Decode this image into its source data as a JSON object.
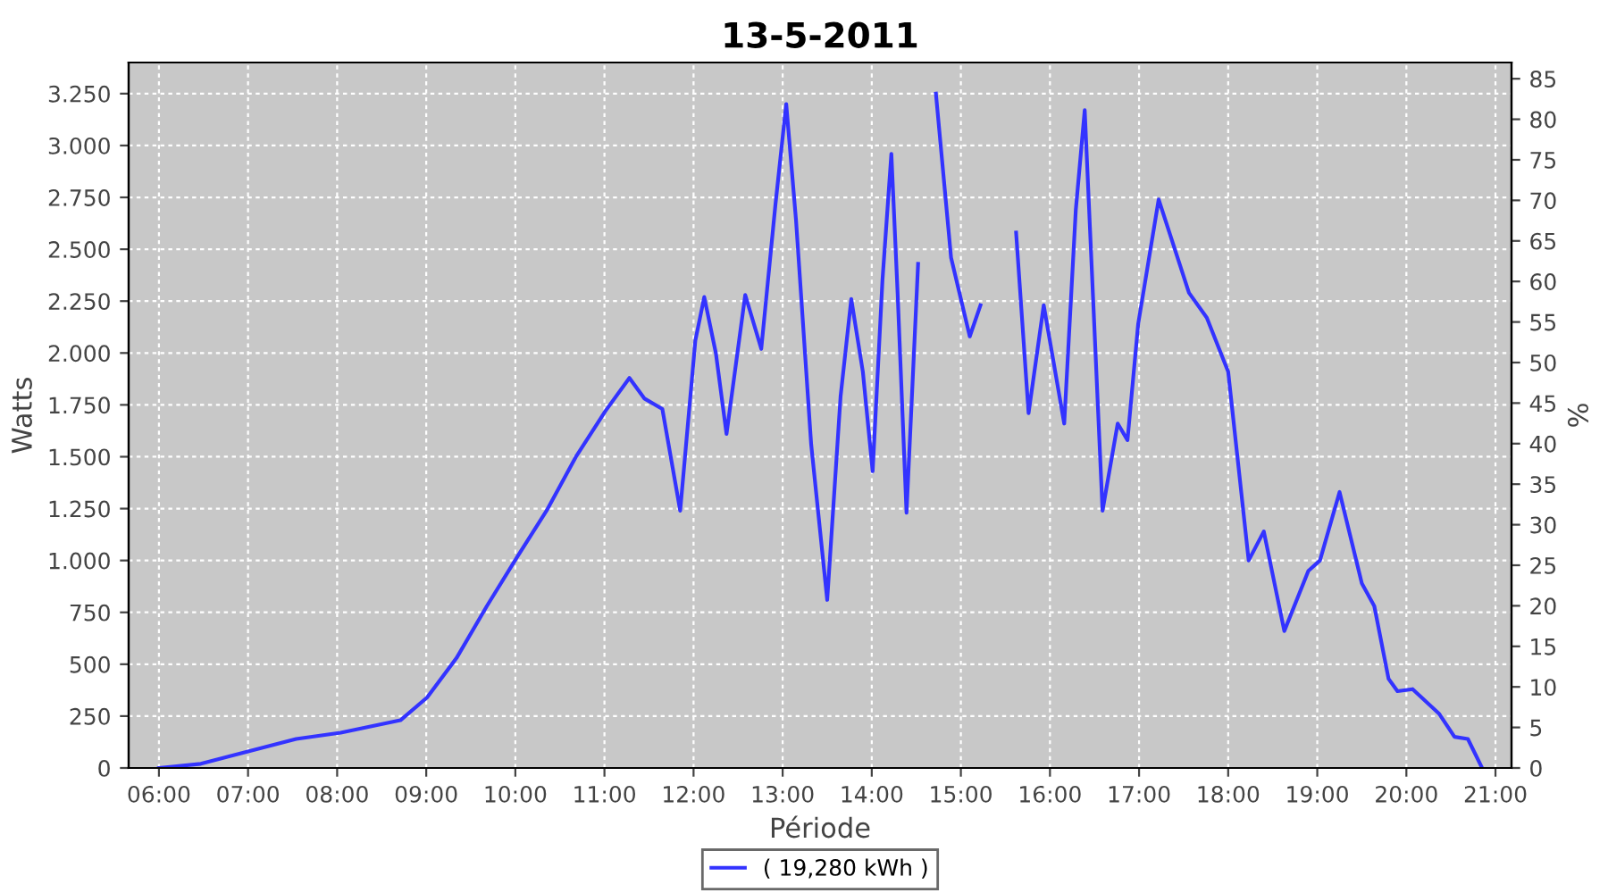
{
  "chart_data": {
    "type": "line",
    "title": "13-5-2011",
    "xlabel": "Période",
    "ylabel": "Watts",
    "y2label": "%",
    "series": [
      {
        "name": "( 19,280 kWh )",
        "color": "#3333ff",
        "x": [
          6.0,
          6.47,
          7.0,
          7.54,
          8.04,
          8.71,
          9.01,
          9.34,
          9.68,
          10.01,
          10.35,
          10.68,
          11.01,
          11.28,
          11.45,
          11.65,
          11.85,
          12.02,
          12.12,
          12.25,
          12.37,
          12.58,
          12.76,
          12.92,
          13.04,
          13.15,
          13.32,
          13.5,
          13.65,
          13.77,
          13.9,
          14.01,
          14.12,
          14.22,
          14.29,
          14.39,
          14.52,
          14.62,
          14.72,
          14.89,
          15.1,
          15.22,
          15.42,
          15.52,
          15.62,
          15.76,
          15.93,
          16.16,
          16.29,
          16.39,
          16.59,
          16.76,
          16.87,
          16.99,
          17.22,
          17.56,
          17.76,
          18.0,
          18.23,
          18.4,
          18.63,
          18.9,
          19.03,
          19.25,
          19.5,
          19.64,
          19.8,
          19.9,
          20.07,
          20.37,
          20.54,
          20.69,
          20.85
        ],
        "values": [
          0,
          20,
          80,
          140,
          170,
          230,
          340,
          530,
          780,
          1010,
          1240,
          1500,
          1720,
          1880,
          1780,
          1730,
          1240,
          2060,
          2270,
          2000,
          1610,
          2280,
          2020,
          2720,
          3200,
          2640,
          1560,
          810,
          1790,
          2260,
          1910,
          1430,
          2350,
          2960,
          2290,
          1230,
          2430,
          null,
          3250,
          2460,
          2080,
          2230,
          null,
          null,
          2580,
          1710,
          2230,
          1660,
          2690,
          3170,
          1240,
          1660,
          1580,
          2140,
          2740,
          2290,
          2170,
          1910,
          1000,
          1140,
          660,
          950,
          1000,
          1330,
          890,
          780,
          430,
          370,
          380,
          260,
          150,
          140,
          0
        ]
      }
    ],
    "xlim": [
      5.66,
      21.18
    ],
    "xticks": [
      {
        "value": 6,
        "label": "06:00"
      },
      {
        "value": 7,
        "label": "07:00"
      },
      {
        "value": 8,
        "label": "08:00"
      },
      {
        "value": 9,
        "label": "09:00"
      },
      {
        "value": 10,
        "label": "10:00"
      },
      {
        "value": 11,
        "label": "11:00"
      },
      {
        "value": 12,
        "label": "12:00"
      },
      {
        "value": 13,
        "label": "13:00"
      },
      {
        "value": 14,
        "label": "14:00"
      },
      {
        "value": 15,
        "label": "15:00"
      },
      {
        "value": 16,
        "label": "16:00"
      },
      {
        "value": 17,
        "label": "17:00"
      },
      {
        "value": 18,
        "label": "18:00"
      },
      {
        "value": 19,
        "label": "19:00"
      },
      {
        "value": 20,
        "label": "20:00"
      },
      {
        "value": 21,
        "label": "21:00"
      }
    ],
    "ylim": [
      0,
      3400
    ],
    "yticks": [
      0,
      250,
      500,
      750,
      {
        "value": 1000,
        "label": "1.000"
      },
      {
        "value": 1250,
        "label": "1.250"
      },
      {
        "value": 1500,
        "label": "1.500"
      },
      {
        "value": 1750,
        "label": "1.750"
      },
      {
        "value": 2000,
        "label": "2.000"
      },
      {
        "value": 2250,
        "label": "2.250"
      },
      {
        "value": 2500,
        "label": "2.500"
      },
      {
        "value": 2750,
        "label": "2.750"
      },
      {
        "value": 3000,
        "label": "3.000"
      },
      {
        "value": 3250,
        "label": "3.250"
      }
    ],
    "y2lim": [
      0,
      87
    ],
    "y2ticks": [
      0,
      5,
      10,
      15,
      20,
      25,
      30,
      35,
      40,
      45,
      50,
      55,
      60,
      65,
      70,
      75,
      80,
      85
    ],
    "grid": true,
    "legend": "bottom",
    "marker": "none",
    "line_style": "solid"
  }
}
